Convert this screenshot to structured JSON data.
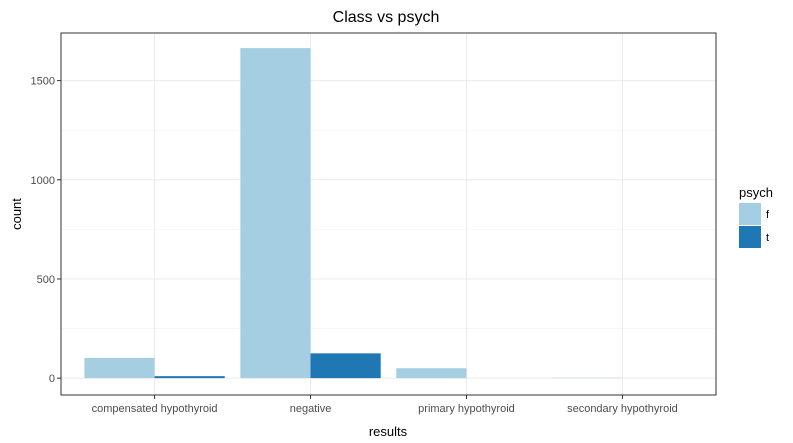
{
  "chart_data": {
    "type": "bar",
    "title": "Class vs psych",
    "xlabel": "results",
    "ylabel": "count",
    "categories": [
      "compensated hypothyroid",
      "negative",
      "primary hypothyroid",
      "secondary hypothyroid"
    ],
    "series": [
      {
        "name": "f",
        "color": "#a6cee3",
        "values": [
          102,
          1664,
          50,
          2
        ]
      },
      {
        "name": "t",
        "color": "#1f78b4",
        "values": [
          10,
          125,
          0,
          0
        ]
      }
    ],
    "ylim": [
      -85,
      1740
    ],
    "yticks": [
      0,
      500,
      1000,
      1500
    ],
    "grid": true,
    "legend": {
      "title": "psych",
      "position": "right"
    }
  }
}
